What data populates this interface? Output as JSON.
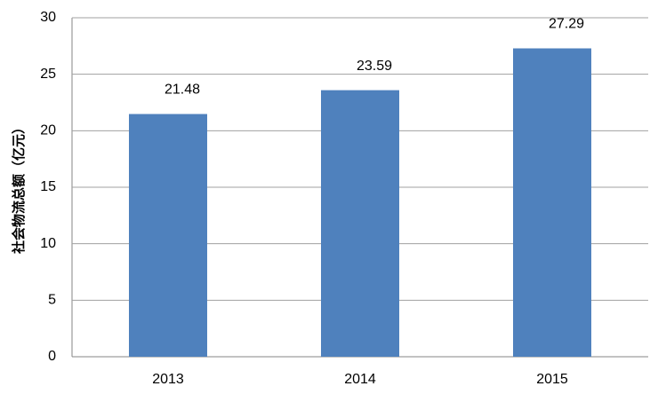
{
  "chart_data": {
    "type": "bar",
    "y_label": "社会物流总额（亿元）",
    "categories": [
      "2013",
      "2014",
      "2015"
    ],
    "values": [
      21.48,
      23.59,
      27.29
    ],
    "color": "#4f81bd",
    "ylim": [
      0,
      30
    ],
    "yticks": [
      0,
      5,
      10,
      15,
      20,
      25,
      30
    ],
    "grid": true
  }
}
